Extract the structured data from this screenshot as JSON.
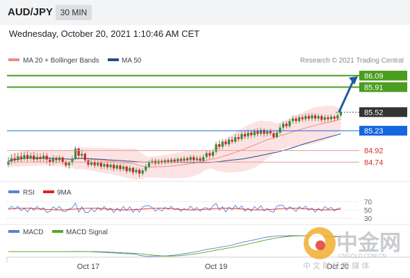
{
  "header": {
    "pair": "AUD/JPY",
    "timeframe": "30 MIN"
  },
  "datetime": "Wednesday, October 20, 2021 1:10:46 AM CET",
  "chart_data": {
    "type": "candlestick",
    "legend": [
      {
        "name": "MA 20 + Bollinger Bands",
        "color": "#f08a84"
      },
      {
        "name": "MA 50",
        "color": "#1f4e8c"
      }
    ],
    "credit": "Research © 2021 Trading Central",
    "ylim": [
      84.45,
      86.25
    ],
    "x_ticks": [
      "Oct 17",
      "Oct 19",
      "Oct 20"
    ],
    "candles": [
      [
        84.7,
        84.75,
        84.82,
        84.66
      ],
      [
        84.75,
        84.8,
        84.86,
        84.7
      ],
      [
        84.8,
        84.77,
        84.88,
        84.72
      ],
      [
        84.77,
        84.83,
        84.88,
        84.73
      ],
      [
        84.83,
        84.8,
        84.89,
        84.74
      ],
      [
        84.8,
        84.85,
        84.9,
        84.76
      ],
      [
        84.85,
        84.8,
        84.91,
        84.75
      ],
      [
        84.8,
        84.84,
        84.89,
        84.76
      ],
      [
        84.84,
        84.78,
        84.9,
        84.73
      ],
      [
        84.78,
        84.82,
        84.88,
        84.74
      ],
      [
        84.82,
        84.79,
        84.87,
        84.74
      ],
      [
        84.79,
        84.84,
        84.89,
        84.75
      ],
      [
        84.84,
        84.78,
        84.88,
        84.72
      ],
      [
        84.78,
        84.74,
        84.82,
        84.68
      ],
      [
        84.74,
        84.8,
        84.85,
        84.7
      ],
      [
        84.8,
        84.77,
        84.84,
        84.72
      ],
      [
        84.77,
        84.81,
        84.85,
        84.73
      ],
      [
        84.81,
        84.74,
        84.83,
        84.7
      ],
      [
        84.74,
        84.69,
        84.77,
        84.66
      ],
      [
        84.69,
        84.73,
        84.76,
        84.64
      ],
      [
        84.73,
        84.79,
        84.84,
        84.69
      ],
      [
        84.79,
        84.95,
        84.99,
        84.77
      ],
      [
        84.95,
        84.84,
        84.97,
        84.8
      ],
      [
        84.84,
        84.87,
        84.92,
        84.79
      ],
      [
        84.87,
        84.77,
        84.89,
        84.73
      ],
      [
        84.77,
        84.7,
        84.8,
        84.66
      ],
      [
        84.7,
        84.74,
        84.79,
        84.67
      ],
      [
        84.74,
        84.69,
        84.78,
        84.65
      ],
      [
        84.69,
        84.73,
        84.77,
        84.66
      ],
      [
        84.73,
        84.67,
        84.76,
        84.63
      ],
      [
        84.67,
        84.71,
        84.74,
        84.63
      ],
      [
        84.71,
        84.66,
        84.75,
        84.62
      ],
      [
        84.66,
        84.7,
        84.73,
        84.62
      ],
      [
        84.7,
        84.64,
        84.73,
        84.6
      ],
      [
        84.64,
        84.69,
        84.72,
        84.61
      ],
      [
        84.69,
        84.63,
        84.72,
        84.59
      ],
      [
        84.63,
        84.67,
        84.71,
        84.6
      ],
      [
        84.67,
        84.6,
        84.69,
        84.56
      ],
      [
        84.6,
        84.65,
        84.69,
        84.57
      ],
      [
        84.65,
        84.58,
        84.67,
        84.54
      ],
      [
        84.58,
        84.62,
        84.66,
        84.55
      ],
      [
        84.62,
        84.56,
        84.65,
        84.5
      ],
      [
        84.56,
        84.61,
        84.64,
        84.53
      ],
      [
        84.61,
        84.67,
        84.71,
        84.58
      ],
      [
        84.67,
        84.73,
        84.77,
        84.64
      ],
      [
        84.73,
        84.76,
        84.8,
        84.7
      ],
      [
        84.76,
        84.72,
        84.8,
        84.68
      ],
      [
        84.72,
        84.76,
        84.79,
        84.69
      ],
      [
        84.76,
        84.73,
        84.79,
        84.7
      ],
      [
        84.73,
        84.77,
        84.8,
        84.7
      ],
      [
        84.77,
        84.74,
        84.8,
        84.71
      ],
      [
        84.74,
        84.78,
        84.81,
        84.71
      ],
      [
        84.78,
        84.75,
        84.81,
        84.72
      ],
      [
        84.75,
        84.79,
        84.82,
        84.72
      ],
      [
        84.79,
        84.76,
        84.82,
        84.73
      ],
      [
        84.76,
        84.8,
        84.84,
        84.73
      ],
      [
        84.8,
        84.77,
        84.83,
        84.74
      ],
      [
        84.77,
        84.82,
        84.85,
        84.74
      ],
      [
        84.82,
        84.77,
        84.85,
        84.72
      ],
      [
        84.77,
        84.8,
        84.84,
        84.74
      ],
      [
        84.8,
        84.76,
        84.84,
        84.73
      ],
      [
        84.76,
        84.82,
        84.86,
        84.73
      ],
      [
        84.82,
        84.88,
        84.93,
        84.78
      ],
      [
        84.88,
        84.84,
        84.92,
        84.79
      ],
      [
        84.84,
        84.9,
        84.94,
        84.8
      ],
      [
        84.9,
        85.02,
        85.06,
        84.86
      ],
      [
        85.02,
        84.98,
        85.08,
        84.94
      ],
      [
        84.98,
        85.06,
        85.1,
        84.94
      ],
      [
        85.06,
        85.02,
        85.1,
        84.99
      ],
      [
        85.02,
        85.09,
        85.13,
        84.98
      ],
      [
        85.09,
        85.06,
        85.14,
        85.02
      ],
      [
        85.06,
        85.13,
        85.18,
        85.03
      ],
      [
        85.13,
        85.1,
        85.18,
        85.06
      ],
      [
        85.1,
        85.18,
        85.22,
        85.07
      ],
      [
        85.18,
        85.14,
        85.23,
        85.1
      ],
      [
        85.14,
        85.2,
        85.25,
        85.1
      ],
      [
        85.2,
        85.16,
        85.24,
        85.12
      ],
      [
        85.16,
        85.22,
        85.26,
        85.12
      ],
      [
        85.22,
        85.18,
        85.27,
        85.14
      ],
      [
        85.18,
        85.24,
        85.28,
        85.14
      ],
      [
        85.24,
        85.18,
        85.27,
        85.13
      ],
      [
        85.18,
        85.22,
        85.25,
        85.14
      ],
      [
        85.22,
        85.19,
        85.26,
        85.15
      ],
      [
        85.19,
        85.13,
        85.22,
        85.1
      ],
      [
        85.13,
        85.2,
        85.24,
        85.11
      ],
      [
        85.2,
        85.28,
        85.33,
        85.17
      ],
      [
        85.28,
        85.34,
        85.38,
        85.24
      ],
      [
        85.34,
        85.3,
        85.38,
        85.26
      ],
      [
        85.3,
        85.38,
        85.42,
        85.27
      ],
      [
        85.38,
        85.42,
        85.47,
        85.34
      ],
      [
        85.42,
        85.38,
        85.46,
        85.34
      ],
      [
        85.38,
        85.44,
        85.48,
        85.35
      ],
      [
        85.44,
        85.41,
        85.48,
        85.37
      ],
      [
        85.41,
        85.46,
        85.5,
        85.37
      ],
      [
        85.46,
        85.42,
        85.5,
        85.38
      ],
      [
        85.42,
        85.47,
        85.51,
        85.38
      ],
      [
        85.47,
        85.42,
        85.5,
        85.38
      ],
      [
        85.42,
        85.46,
        85.5,
        85.38
      ],
      [
        85.46,
        85.4,
        85.49,
        85.36
      ],
      [
        85.4,
        85.44,
        85.48,
        85.36
      ],
      [
        85.44,
        85.41,
        85.48,
        85.37
      ],
      [
        85.41,
        85.45,
        85.49,
        85.37
      ],
      [
        85.45,
        85.42,
        85.48,
        85.38
      ],
      [
        85.42,
        85.47,
        85.51,
        85.39
      ],
      [
        85.47,
        85.52,
        85.56,
        85.44
      ]
    ],
    "price_levels": [
      {
        "value": 86.09,
        "label": "86.09",
        "style": "green-tag"
      },
      {
        "value": 85.91,
        "label": "85.91",
        "style": "green-tag"
      },
      {
        "value": 85.52,
        "label": "85.52",
        "style": "dark-tag"
      },
      {
        "value": 85.23,
        "label": "85.23",
        "style": "blue-tag"
      },
      {
        "value": 84.92,
        "label": "84.92",
        "style": "red-text"
      },
      {
        "value": 84.74,
        "label": "84.74",
        "style": "red-text"
      }
    ],
    "arrow": {
      "from_candle": 103,
      "from_price": 85.52,
      "to_price": 86.09
    },
    "rsi": {
      "legend": [
        {
          "name": "RSI",
          "color": "#5b7fd6"
        },
        {
          "name": "9MA",
          "color": "#e0202c"
        }
      ],
      "ylim": [
        20,
        80
      ],
      "levels": [
        70,
        50,
        30
      ],
      "level_labels": [
        "70",
        "50",
        "30"
      ]
    },
    "macd": {
      "legend": [
        {
          "name": "MACD",
          "color": "#5b7fd6"
        },
        {
          "name": "MACD Signal",
          "color": "#55a826"
        }
      ]
    }
  },
  "colors": {
    "bullish": "#3a8a3a",
    "bearish": "#c62828",
    "band_fill": "#fbdcdc",
    "ma20": "#f08a84",
    "ma50": "#1f4e8c",
    "green_tag": "#4a9d1e",
    "dark_tag": "#333333",
    "blue_tag": "#1565e0",
    "red_text": "#d32f2f",
    "arrow": "#1f5a9e"
  },
  "watermark": {
    "brand_main": "中金网",
    "brand_url": "CNGOLD.COM.CN",
    "brand_sub": "中 文 财 经 新 媒 体"
  }
}
